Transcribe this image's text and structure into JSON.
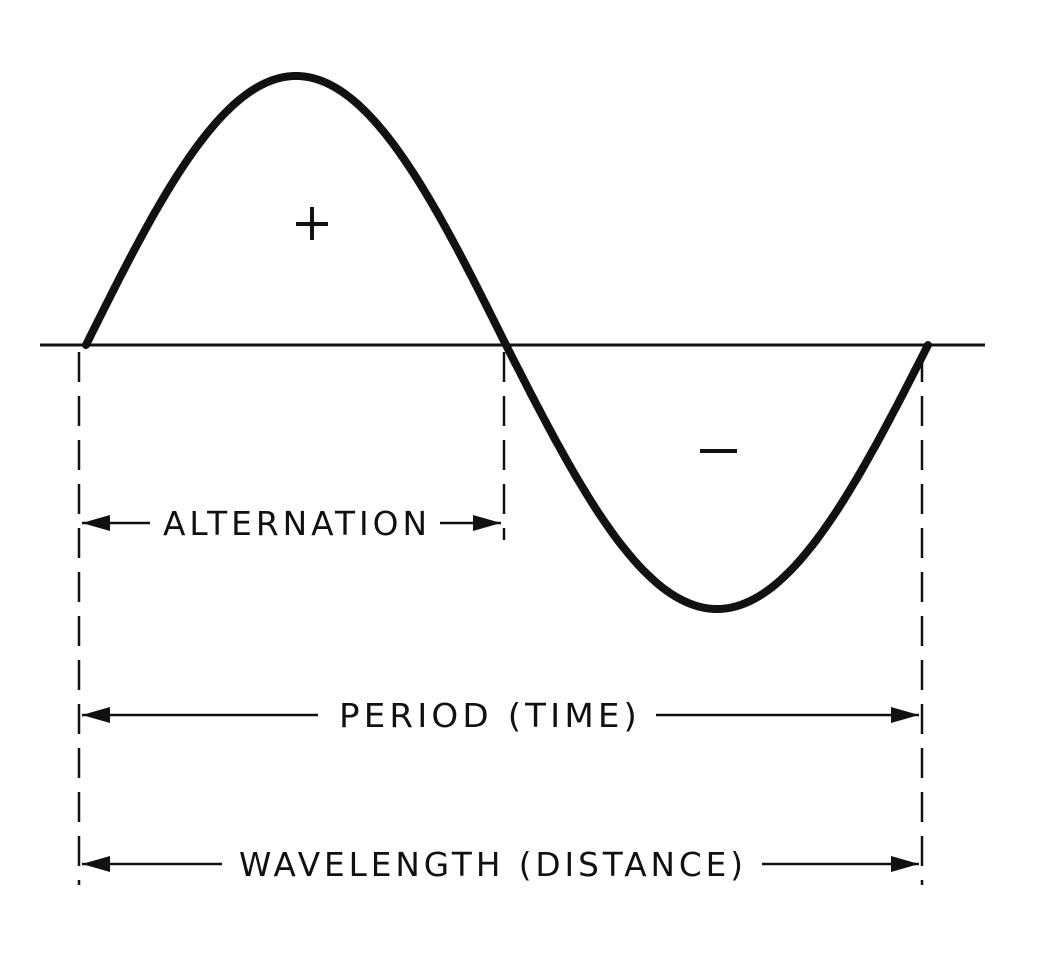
{
  "diagram": {
    "labels": {
      "alternation": "ALTERNATION",
      "period": "PERIOD (TIME)",
      "wavelength": "WAVELENGTH (DISTANCE)"
    },
    "signs": {
      "positive": "+",
      "negative": "−"
    },
    "colors": {
      "ink": "#111111",
      "background": "#ffffff"
    }
  }
}
